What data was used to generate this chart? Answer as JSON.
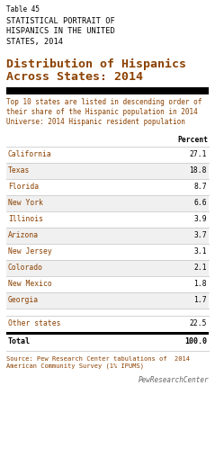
{
  "table_label": "Table 45",
  "subtitle_upper": "STATISTICAL PORTRAIT OF\nHISPANICS IN THE UNITED\nSTATES, 2014",
  "title_line1": "Distribution of Hispanics",
  "title_line2": "Across States: 2014",
  "note1": "Top 10 states are listed in descending order of\ntheir share of the Hispanic population in 2014",
  "note2": "Universe: 2014 Hispanic resident population",
  "col_header": "Percent",
  "states": [
    "California",
    "Texas",
    "Florida",
    "New York",
    "Illinois",
    "Arizona",
    "New Jersey",
    "Colorado",
    "New Mexico",
    "Georgia"
  ],
  "values": [
    "27.1",
    "18.8",
    "8.7",
    "6.6",
    "3.9",
    "3.7",
    "3.1",
    "2.1",
    "1.8",
    "1.7"
  ],
  "other_label": "Other states",
  "other_value": "22.5",
  "total_label": "Total",
  "total_value": "100.0",
  "source": "Source: Pew Research Center tabulations of  2014\nAmerican Community Survey (1% IPUMS)",
  "branding": "PewResearchCenter",
  "bg_color": "#ffffff",
  "text_brown": "#8B4000",
  "text_black": "#000000",
  "text_gray": "#666666",
  "line_color": "#cccccc",
  "row_alt_color": "#f0f0f0",
  "bar_color": "#000000",
  "total_bar_color": "#000000"
}
